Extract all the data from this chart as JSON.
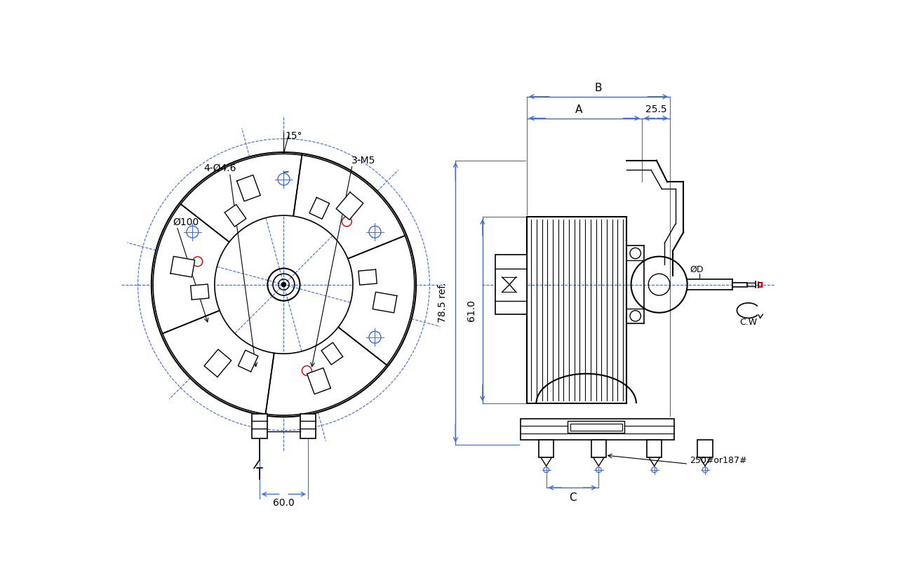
{
  "bg_color": "#ffffff",
  "line_color_black": "#000000",
  "line_color_blue": "#4169e1",
  "line_color_red": "#cc0000",
  "fig_width": 13.0,
  "fig_height": 8.14,
  "annotations_left": {
    "label_4phi46": "4-Ø4.6",
    "label_15deg": "15°",
    "label_3M5": "3-M5",
    "label_phi100": "Ø100",
    "label_60": "60.0"
  },
  "annotations_right": {
    "label_B": "B",
    "label_A": "A",
    "label_25_5": "25.5",
    "label_61": "61.0",
    "label_78_5": "78.5 ref.",
    "label_phiD": "ØD",
    "label_CW": "C.W",
    "label_250": "250#or187#",
    "label_C": "C"
  }
}
